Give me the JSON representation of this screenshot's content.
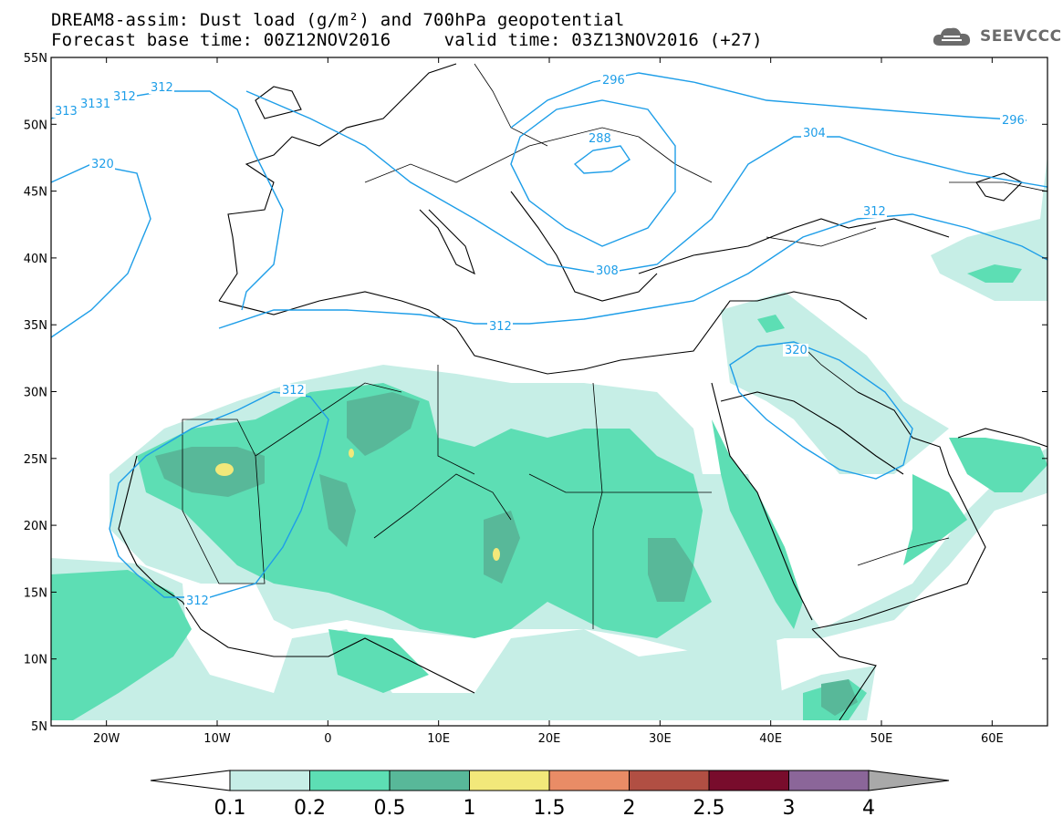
{
  "title": {
    "line1": "DREAM8-assim: Dust load (g/m²) and 700hPa geopotential",
    "line2": "Forecast base time: 00Z12NOV2016     valid time: 03Z13NOV2016 (+27)"
  },
  "logo": {
    "text": "SEEVCCC",
    "icon": "cloud-logo-icon"
  },
  "map": {
    "lon_range": [
      -25,
      65
    ],
    "lat_range": [
      5,
      55
    ],
    "lat_labels": [
      "55N",
      "50N",
      "45N",
      "40N",
      "35N",
      "30N",
      "25N",
      "20N",
      "15N",
      "10N",
      "5N"
    ],
    "lon_labels": [
      "20W",
      "10W",
      "0",
      "10E",
      "20E",
      "30E",
      "40E",
      "50E",
      "60E"
    ],
    "contour_labels": [
      "313",
      "3131",
      "312",
      "312",
      "320",
      "296",
      "288",
      "304",
      "312",
      "308",
      "312",
      "320",
      "312",
      "312",
      "296"
    ]
  },
  "colorbar": {
    "labels": [
      "0.1",
      "0.2",
      "0.5",
      "1",
      "1.5",
      "2",
      "2.5",
      "3",
      "4"
    ],
    "colors": [
      "#c6eee6",
      "#5ddeb4",
      "#58b899",
      "#f2e87a",
      "#e98c66",
      "#b14f43",
      "#780c2c",
      "#8b6699"
    ],
    "under_color": "#ffffff",
    "over_color": "#a9a9a9"
  }
}
